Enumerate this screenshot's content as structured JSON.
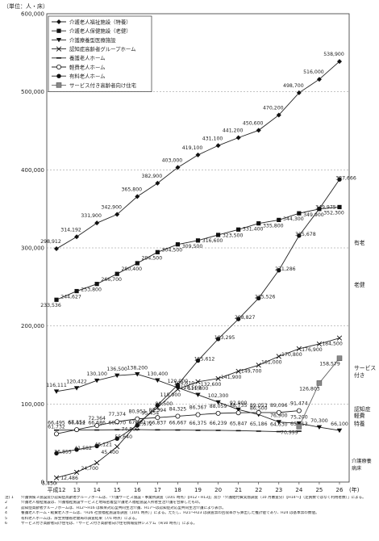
{
  "unit_label": "（単位：人・床）",
  "chart_data": {
    "type": "line",
    "x": [
      "平成12",
      "13",
      "14",
      "15",
      "16",
      "17",
      "18",
      "19",
      "20",
      "21",
      "22",
      "23",
      "24",
      "25",
      "26"
    ],
    "x_unit": "(年)",
    "ylim": [
      0,
      600000
    ],
    "yticks": [
      "0",
      "100,000",
      "200,000",
      "300,000",
      "400,000",
      "500,000",
      "600,000"
    ],
    "grid": true,
    "legend_position": "top-left",
    "series": [
      {
        "name": "介護老人福祉施設（特養）",
        "marker": "filled-diamond",
        "right_label": "特養",
        "values": [
          298912,
          314192,
          331900,
          342900,
          365800,
          382900,
          403000,
          419100,
          431100,
          441200,
          450600,
          470200,
          498700,
          516000,
          538900
        ],
        "labels": [
          "298,912",
          "314,192",
          "331,900",
          "342,900",
          "365,800",
          "382,900",
          "403,000",
          "419,100",
          "431,100",
          "441,200",
          "450,600",
          "470,200",
          "498,700",
          "516,000",
          "538,900"
        ]
      },
      {
        "name": "介護老人保健施設（老健）",
        "marker": "filled-square",
        "right_label": "老健",
        "values": [
          233536,
          244627,
          253800,
          266700,
          280400,
          294500,
          304500,
          309500,
          316600,
          323500,
          331400,
          335800,
          344300,
          349900,
          352300
        ],
        "labels": [
          "233,536",
          "244,627",
          "253,800",
          "266,700",
          "280,400",
          "294,500",
          "304,500",
          "309,500",
          "316,600",
          "323,500",
          "331,400",
          "335,800",
          "344,300",
          "349,900",
          "352,300"
        ]
      },
      {
        "name": "介護療養型医療施設",
        "marker": "filled-triangle-down",
        "right_label": "介護療養病床",
        "values": [
          116111,
          120422,
          130100,
          136500,
          138200,
          130400,
          120900,
          111800,
          102300,
          92900,
          86500,
          76900,
          75200,
          70300,
          66100
        ],
        "labels": [
          "116,111",
          "120,422",
          "130,100",
          "136,500",
          "138,200",
          "130,400",
          "120,900",
          "111,800",
          "102,300",
          "92,900",
          "86,500",
          "76,900",
          "75,200",
          "70,300",
          "66,100"
        ]
      },
      {
        "name": "認知症高齢者グループホーム",
        "marker": "x",
        "right_label": "認知症",
        "values": [
          5450,
          12486,
          24700,
          45400,
          74800,
          95454,
          118900,
          128500,
          132600,
          141900,
          149700,
          161000,
          170800,
          176900,
          184500
        ],
        "labels": [
          "5,450",
          "12,486",
          "24,700",
          "45,400",
          "74,800",
          "95,454",
          "118,900",
          "128,500",
          "132,600",
          "141,900",
          "149,700",
          "161,000",
          "170,800",
          "176,900",
          "184,500"
        ]
      },
      {
        "name": "養護老人ホーム",
        "marker": "dash",
        "right_label": "",
        "values": [
          66495,
          66612,
          66686,
          66970,
          67181,
          66837,
          66667,
          66375,
          66239,
          65847,
          65186,
          64630,
          65113,
          null,
          null
        ],
        "labels": [
          "66,495",
          "66,612",
          "66,686",
          "66,970",
          "67,181",
          "66,837",
          "66,667",
          "66,375",
          "66,239",
          "65,847",
          "65,186",
          "64,630",
          "65,113",
          "",
          ""
        ]
      },
      {
        "name": "軽費老人ホーム",
        "marker": "open-circle",
        "right_label": "軽費",
        "values": [
          61732,
          67154,
          72364,
          77374,
          80951,
          82594,
          84325,
          86367,
          88059,
          88735,
          89053,
          89096,
          91474,
          null,
          null
        ],
        "labels": [
          "61,732",
          "67,154",
          "72,364",
          "77,374",
          "80,951",
          "82,594",
          "84,325",
          "86,367",
          "88,059",
          "88,735",
          "89,053",
          "89,096",
          "91,474",
          "",
          ""
        ]
      },
      {
        "name": "有料老人ホーム",
        "marker": "filled-circle",
        "right_label": "有老",
        "values": [
          36855,
          41582,
          46121,
          55640,
          72672,
          98500,
          124610,
          155612,
          183295,
          208827,
          235526,
          271286,
          315678,
          349975,
          387666
        ],
        "labels": [
          "36,855",
          "41,582",
          "46,121",
          "55,640",
          "72,672",
          "98,500",
          "124,610",
          "155,612",
          "183,295",
          "208,827",
          "235,526",
          "271,286",
          "315,678",
          "349,975",
          "387,666"
        ]
      },
      {
        "name": "サービス付き高齢者向け住宅",
        "marker": "gray-square",
        "right_label": "サービス付き",
        "values": [
          null,
          null,
          null,
          null,
          null,
          null,
          null,
          null,
          null,
          null,
          null,
          null,
          70999,
          126803,
          158579
        ],
        "labels": [
          "",
          "",
          "",
          "",
          "",
          "",
          "",
          "",
          "",
          "",
          "",
          "",
          "70,999",
          "126,803",
          "158,579"
        ]
      }
    ]
  },
  "notes": [
    {
      "marker": "注) 1",
      "text": "介護保険３施設及び認知症高齢者グループホームは、「介護サービス施設・事業所調査（10/1 時点）【H12・H13】」及び「介護給付費実態調査（10 月審査分）【H14～】（定員数ではなく利用者数）」による。"
    },
    {
      "marker": "2",
      "text": "介護老人福祉施設は、介護福祉施設サービスと地域密着型介護老人福祉施設入所者生活介護を合算したもの。"
    },
    {
      "marker": "3",
      "text": "認知症高齢者グループホームは、H12～H16 は痴呆対応型共同生活介護、H17～は認知症対応型共同生活介護により表示。"
    },
    {
      "marker": "4",
      "text": "養護老人ホーム・軽費老人ホームは、「H26 社会福祉施設等調査（10/1 時点）」による。ただし、H21～H23 は調査票の回収率から算出した推計値であり、H24 は基本票の数値。"
    },
    {
      "marker": "5",
      "text": "有料老人ホームは、厚生労働省老健局の調査結果（7/1 時点）による。"
    },
    {
      "marker": "6",
      "text": "サービス付き高齢者向け住宅は、「サービス付き高齢者向け住宅情報提供システム（9/30 時点）」による。"
    }
  ]
}
